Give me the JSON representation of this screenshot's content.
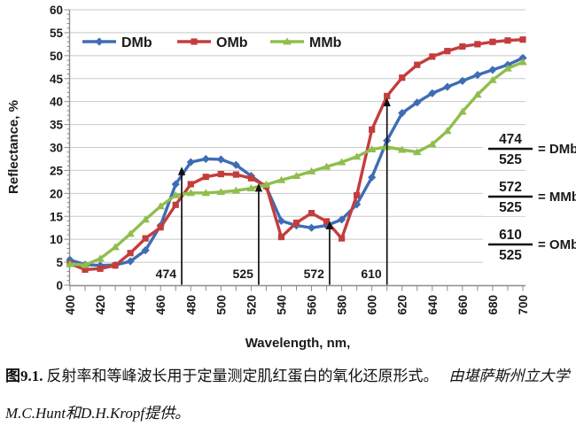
{
  "chart_data": {
    "type": "line",
    "title": "",
    "xlabel": "Wavelength, nm,",
    "ylabel": "Reflectance, %",
    "xlim": [
      400,
      700
    ],
    "ylim": [
      0,
      60
    ],
    "grid": "horizontal gridlines every 5 units",
    "legend_position": "top",
    "x_tick_labels": [
      400,
      420,
      440,
      460,
      480,
      500,
      520,
      540,
      560,
      580,
      600,
      620,
      640,
      660,
      680,
      700
    ],
    "y_tick_labels": [
      0,
      5,
      10,
      15,
      20,
      25,
      30,
      35,
      40,
      45,
      50,
      55,
      60
    ],
    "x": [
      400,
      410,
      420,
      430,
      440,
      450,
      460,
      470,
      480,
      490,
      500,
      510,
      520,
      530,
      540,
      550,
      560,
      570,
      580,
      590,
      600,
      610,
      620,
      630,
      640,
      650,
      660,
      670,
      680,
      690,
      700
    ],
    "series": [
      {
        "name": "DMb",
        "color": "#3E6DB5",
        "marker": "diamond",
        "values": [
          5.5,
          4.5,
          4.3,
          4.4,
          5.2,
          7.6,
          13,
          22,
          26.8,
          27.5,
          27.4,
          26.2,
          23.8,
          21.4,
          14,
          13,
          12.5,
          13,
          14.3,
          17.6,
          23.5,
          31.5,
          37.5,
          39.8,
          41.8,
          43.2,
          44.5,
          45.8,
          46.9,
          48,
          49.5
        ]
      },
      {
        "name": "OMb",
        "color": "#C43D3D",
        "marker": "square",
        "values": [
          4.7,
          3.4,
          3.6,
          4.3,
          7,
          10.2,
          12.6,
          17.5,
          22,
          23.6,
          24.2,
          24.1,
          23.3,
          21.6,
          10.5,
          13.6,
          15.7,
          13.9,
          10.2,
          19.6,
          33.9,
          41.2,
          45.2,
          48,
          49.8,
          51,
          52,
          52.5,
          53,
          53.3,
          53.5
        ]
      },
      {
        "name": "MMb",
        "color": "#8FBE4D",
        "marker": "triangle",
        "values": [
          4.6,
          4.4,
          5.8,
          8.3,
          11.2,
          14.3,
          17.2,
          19.6,
          20.1,
          20.1,
          20.3,
          20.6,
          21.1,
          21.9,
          22.9,
          23.8,
          24.8,
          25.8,
          26.8,
          28,
          29.6,
          30.1,
          29.5,
          29,
          30.7,
          33.6,
          37.8,
          41.5,
          44.7,
          47.2,
          48.6
        ]
      }
    ],
    "arrows": [
      {
        "label": "474",
        "wavelength": 474,
        "tip_value": 25.8
      },
      {
        "label": "525",
        "wavelength": 525,
        "tip_value": 22.2
      },
      {
        "label": "572",
        "wavelength": 572,
        "tip_value": 14.0
      },
      {
        "label": "610",
        "wavelength": 610,
        "tip_value": 40.8
      }
    ],
    "isobestic_ratios": [
      {
        "numerator": "474",
        "denominator": "525",
        "label": "= DMb"
      },
      {
        "numerator": "572",
        "denominator": "525",
        "label": "= MMb"
      },
      {
        "numerator": "610",
        "denominator": "525",
        "label": "= OMb"
      }
    ],
    "grid_color": "#C8C8C8",
    "axis_color": "#8C8C8C",
    "arrow_color": "#111111"
  },
  "caption": {
    "figure_label": "图9.1.",
    "text": "反射率和等峰波长用于定量测定肌红蛋白的氧化还原形式。",
    "credit": "由堪萨斯州立大学M.C.Hunt和D.H.Kropf提供。"
  }
}
